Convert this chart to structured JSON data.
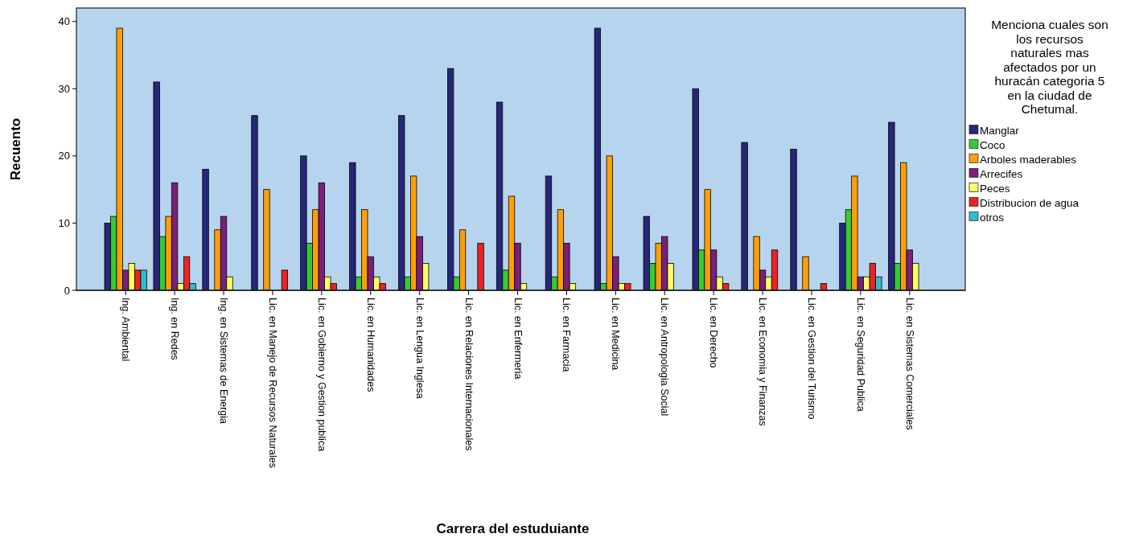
{
  "chart_data": {
    "type": "bar",
    "xlabel": "Carrera del estuduiante",
    "ylabel": "Recuento",
    "legend_title": "Menciona cuales son los recursos naturales mas afectados por un huracán categoria 5 en la ciudad de Chetumal.",
    "categories": [
      "Ing. Ambiental",
      "Ing. en Redes",
      "Ing. en Sistemas de Energia",
      "Lic. en Manejo de Recursos Naturales",
      "Lic. en Gobierno y Gestion publica",
      "Lic. en Humanidades",
      "Lic. en Lengua Inglesa",
      "Lic. en Relaciones Internacionales",
      "Lic. en Enfermeria",
      "Lic. en Farmacia",
      "Lic. en Medicina",
      "Lic. en Antropologia Social",
      "Lic. en Derecho",
      "Lic. en Economia y Finanzas",
      "Lic. en Gestion del Turismo",
      "Lic. en Seguridad Publica",
      "Lic. en Sistemas Comerciales"
    ],
    "series": [
      {
        "name": "Manglar",
        "color": "#26267a",
        "values": [
          10,
          31,
          18,
          26,
          20,
          19,
          26,
          33,
          28,
          17,
          39,
          11,
          30,
          22,
          21,
          10,
          25
        ]
      },
      {
        "name": "Coco",
        "color": "#33cc33",
        "values": [
          11,
          8,
          0,
          0,
          7,
          2,
          2,
          2,
          3,
          2,
          1,
          4,
          6,
          0,
          0,
          12,
          4
        ]
      },
      {
        "name": "Arboles maderables",
        "color": "#ff9e0c",
        "values": [
          39,
          11,
          9,
          15,
          12,
          12,
          17,
          9,
          14,
          12,
          20,
          7,
          15,
          8,
          5,
          17,
          19
        ]
      },
      {
        "name": "Arrecifes",
        "color": "#7b1f7b",
        "values": [
          3,
          16,
          11,
          0,
          16,
          5,
          8,
          0,
          7,
          7,
          5,
          8,
          6,
          3,
          0,
          2,
          6
        ]
      },
      {
        "name": "Peces",
        "color": "#ffff66",
        "values": [
          4,
          1,
          2,
          0,
          2,
          2,
          4,
          0,
          1,
          1,
          1,
          4,
          2,
          2,
          0,
          2,
          4
        ]
      },
      {
        "name": "Distribucion de agua",
        "color": "#ee2222",
        "values": [
          3,
          5,
          0,
          3,
          1,
          1,
          0,
          7,
          0,
          0,
          1,
          0,
          1,
          6,
          1,
          4,
          0
        ]
      },
      {
        "name": "otros",
        "color": "#33bbcc",
        "values": [
          3,
          1,
          0,
          0,
          0,
          0,
          0,
          0,
          0,
          0,
          0,
          0,
          0,
          0,
          0,
          2,
          0
        ]
      }
    ],
    "ylim": [
      0,
      42
    ],
    "yticks": [
      0,
      10,
      20,
      30,
      40
    ],
    "grid": false,
    "legend": "right"
  }
}
